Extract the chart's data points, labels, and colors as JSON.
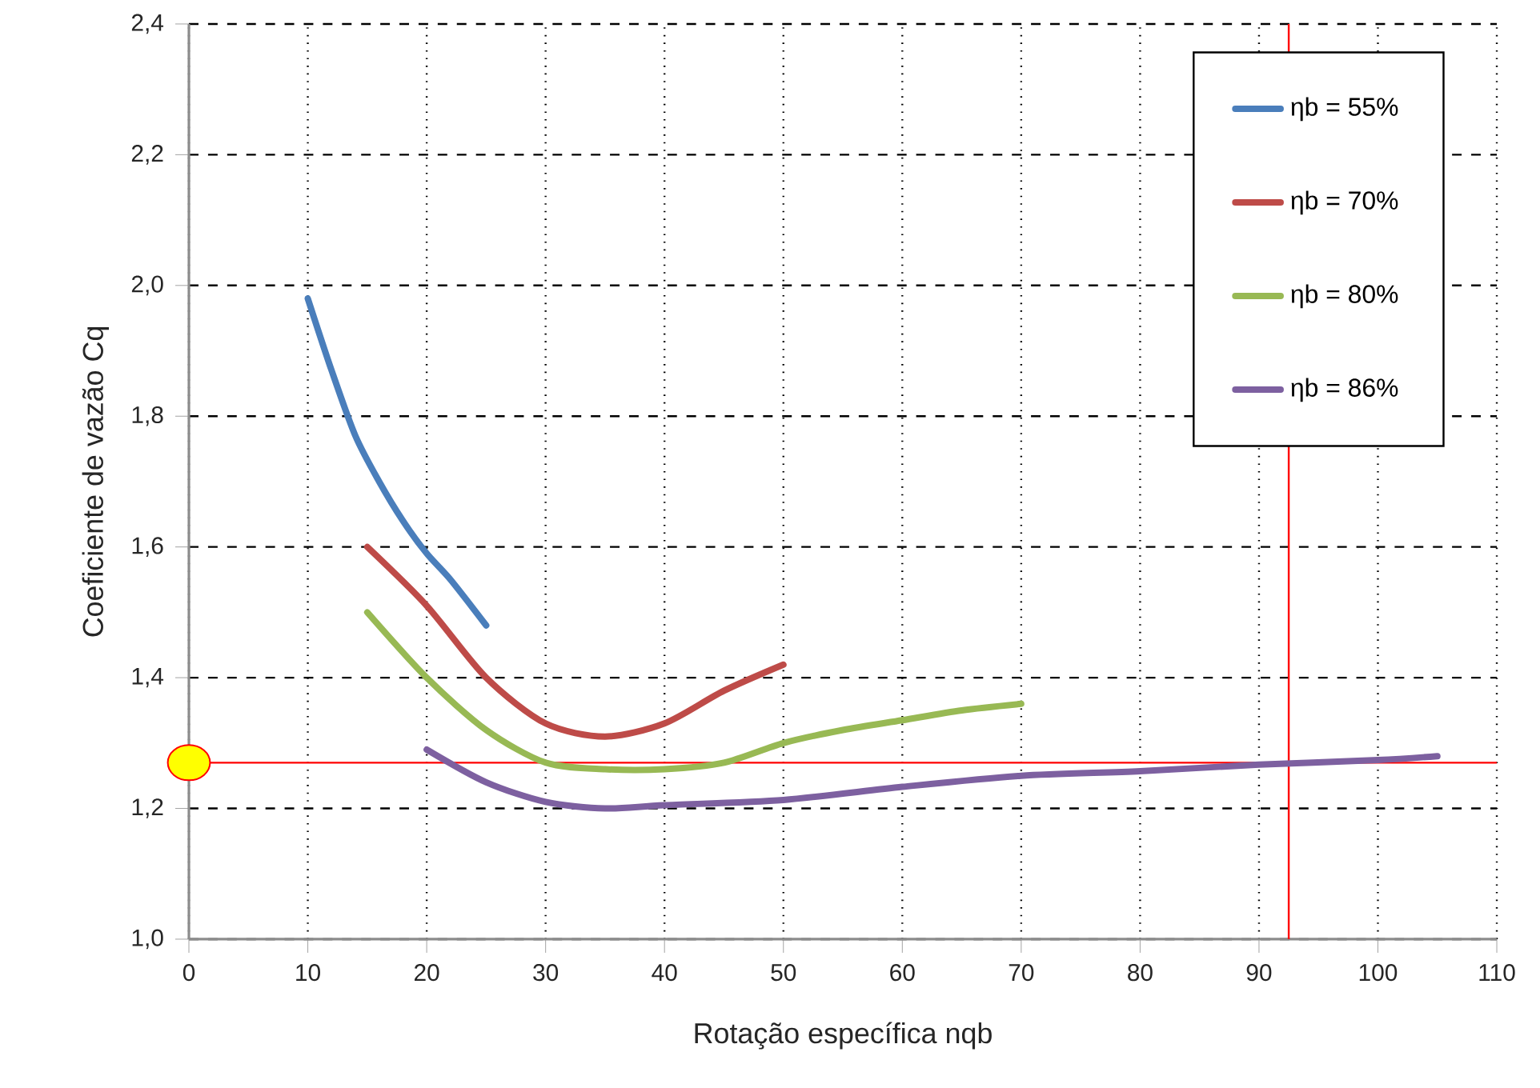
{
  "chart_data": {
    "type": "line",
    "xlabel": "Rotação específica nqb",
    "ylabel": "Coeficiente de vazão Cq",
    "xlim": [
      0,
      110
    ],
    "xticks": [
      0,
      10,
      20,
      30,
      40,
      50,
      60,
      70,
      80,
      90,
      100,
      110
    ],
    "ylim": [
      1.0,
      2.4
    ],
    "yticks": [
      {
        "value": 1.0,
        "label": "1,0"
      },
      {
        "value": 1.2,
        "label": "1,2"
      },
      {
        "value": 1.4,
        "label": "1,4"
      },
      {
        "value": 1.6,
        "label": "1,6"
      },
      {
        "value": 1.8,
        "label": "1,8"
      },
      {
        "value": 2.0,
        "label": "2,0"
      },
      {
        "value": 2.2,
        "label": "2,2"
      },
      {
        "value": 2.4,
        "label": "2,4"
      }
    ],
    "grid": true,
    "legend": "top right",
    "series": [
      {
        "name": "ηb = 55%",
        "color": "#4a7ebb",
        "x": [
          10,
          12,
          14,
          16,
          18,
          20,
          22,
          25
        ],
        "values": [
          1.98,
          1.87,
          1.77,
          1.7,
          1.64,
          1.59,
          1.55,
          1.48
        ]
      },
      {
        "name": "ηb = 70%",
        "color": "#be4b48",
        "x": [
          15,
          20,
          25,
          30,
          35,
          40,
          45,
          50
        ],
        "values": [
          1.6,
          1.51,
          1.4,
          1.33,
          1.31,
          1.33,
          1.38,
          1.42
        ]
      },
      {
        "name": "ηb = 80%",
        "color": "#98b954",
        "x": [
          15,
          20,
          25,
          30,
          35,
          40,
          45,
          50,
          55,
          60,
          65,
          70
        ],
        "values": [
          1.5,
          1.4,
          1.32,
          1.27,
          1.26,
          1.26,
          1.27,
          1.3,
          1.32,
          1.335,
          1.35,
          1.36
        ]
      },
      {
        "name": "ηb = 86%",
        "color": "#7d60a0",
        "x": [
          20,
          25,
          30,
          35,
          40,
          50,
          60,
          70,
          80,
          90,
          100,
          105
        ],
        "values": [
          1.29,
          1.24,
          1.21,
          1.2,
          1.205,
          1.213,
          1.233,
          1.25,
          1.257,
          1.267,
          1.274,
          1.28
        ]
      },
      {
        "type": "scatter",
        "color": "#ffff00",
        "x": [
          0
        ],
        "values": [
          1.27
        ]
      }
    ],
    "ref_lines": [
      {
        "axis": "y",
        "value": 1.27,
        "color": "#ff0000"
      },
      {
        "axis": "x",
        "value": 92.5,
        "color": "#ff0000"
      }
    ]
  }
}
